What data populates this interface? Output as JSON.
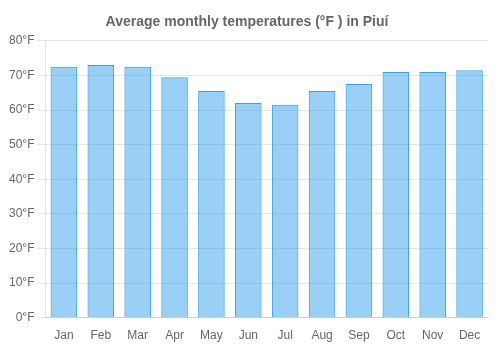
{
  "chart_data": {
    "type": "bar",
    "title": "Average monthly temperatures (°F ) in Piuí",
    "categories": [
      "Jan",
      "Feb",
      "Mar",
      "Apr",
      "May",
      "Jun",
      "Jul",
      "Aug",
      "Sep",
      "Oct",
      "Nov",
      "Dec"
    ],
    "values": [
      72.5,
      73.0,
      72.5,
      69.5,
      65.5,
      62.0,
      61.5,
      65.5,
      67.5,
      71.0,
      71.0,
      71.5
    ],
    "ylim": [
      0,
      80
    ],
    "yticks": [
      {
        "value": 0,
        "label": "0°F"
      },
      {
        "value": 10,
        "label": "10°F"
      },
      {
        "value": 20,
        "label": "20°F"
      },
      {
        "value": 30,
        "label": "30°F"
      },
      {
        "value": 40,
        "label": "40°F"
      },
      {
        "value": 50,
        "label": "50°F"
      },
      {
        "value": 60,
        "label": "60°F"
      },
      {
        "value": 70,
        "label": "70°F"
      },
      {
        "value": 80,
        "label": "80°F"
      }
    ],
    "grid": true
  }
}
